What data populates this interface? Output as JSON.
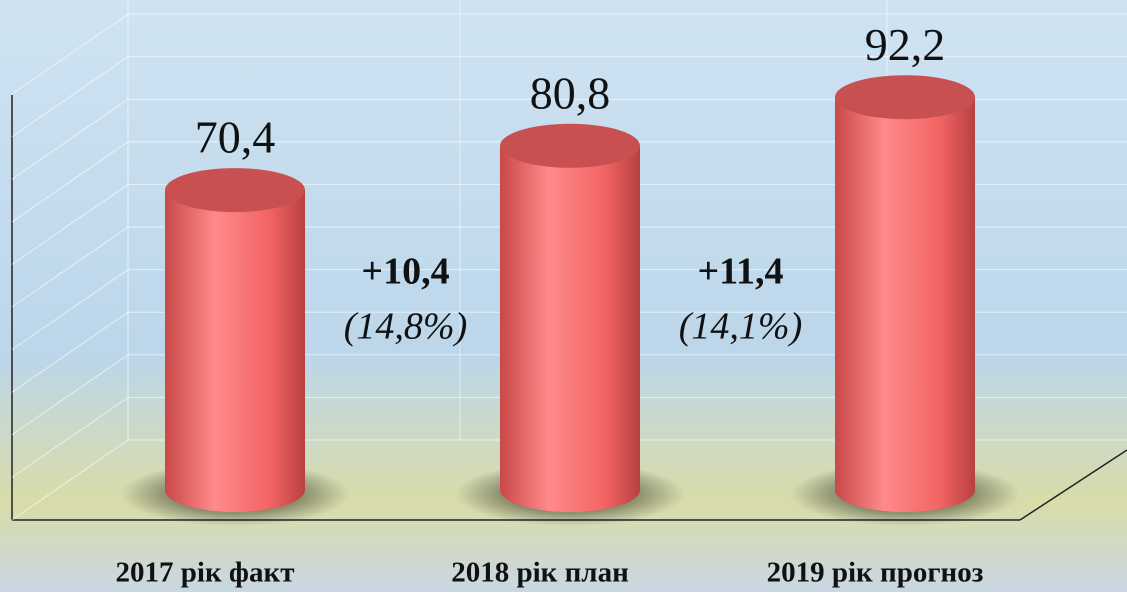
{
  "chart_data": {
    "type": "bar",
    "categories": [
      "2017 рік факт",
      "2018 рік план",
      "2019 рік прогноз"
    ],
    "values": [
      70.4,
      80.8,
      92.2
    ],
    "value_labels": [
      "70,4",
      "80,8",
      "92,2"
    ],
    "color": "#f06565",
    "ylim": [
      0,
      100
    ],
    "yticks": [
      0,
      10,
      20,
      30,
      40,
      50,
      60,
      70,
      80,
      90,
      100
    ],
    "grid": true,
    "annotations": [
      {
        "change": "+10,4",
        "percent": "(14,8%)"
      },
      {
        "change": "+11,4",
        "percent": "(14,1%)"
      }
    ]
  }
}
